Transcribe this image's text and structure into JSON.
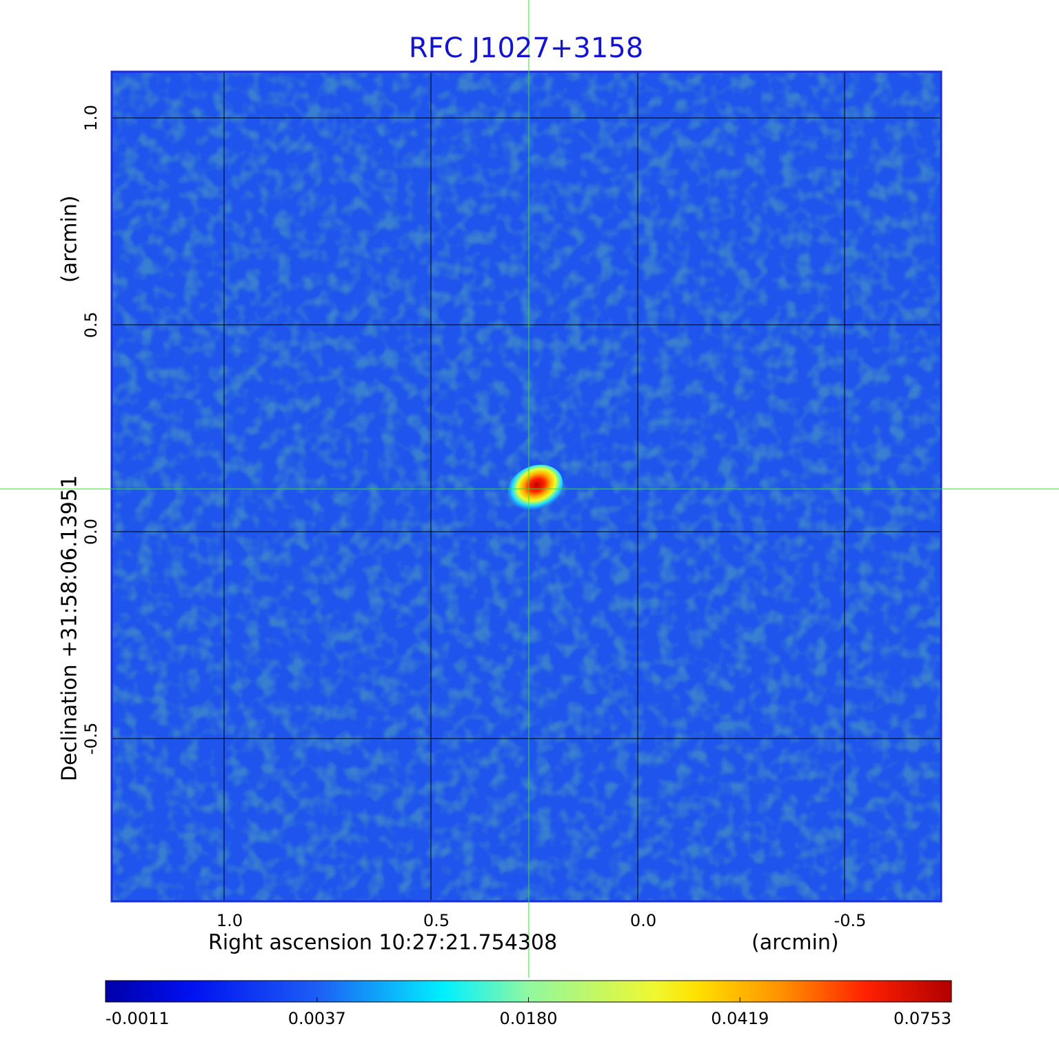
{
  "chart_data": {
    "type": "image",
    "title": "RFC J1027+3158",
    "x_label": "Right ascension  10:27:21.754308",
    "x_unit": "(arcmin)",
    "y_label": "Declination  +31:58:06.13951",
    "y_unit": "(arcmin)",
    "xlim": [
      1.2717,
      -0.7333
    ],
    "ylim": [
      -0.8933,
      1.1117
    ],
    "xticks": [
      {
        "value": 1,
        "label": "1.0"
      },
      0.5,
      {
        "value": 0,
        "label": "0.0"
      },
      -0.5
    ],
    "yticks": [
      -0.5,
      {
        "value": 0,
        "label": "0.0"
      },
      0.5,
      {
        "value": 1,
        "label": "1.0"
      }
    ],
    "grid": true,
    "colorbar_ticks": [
      -0.0011,
      0.0037,
      {
        "value": 0.018,
        "label": "0.0180"
      },
      0.0419,
      0.0753
    ]
  }
}
